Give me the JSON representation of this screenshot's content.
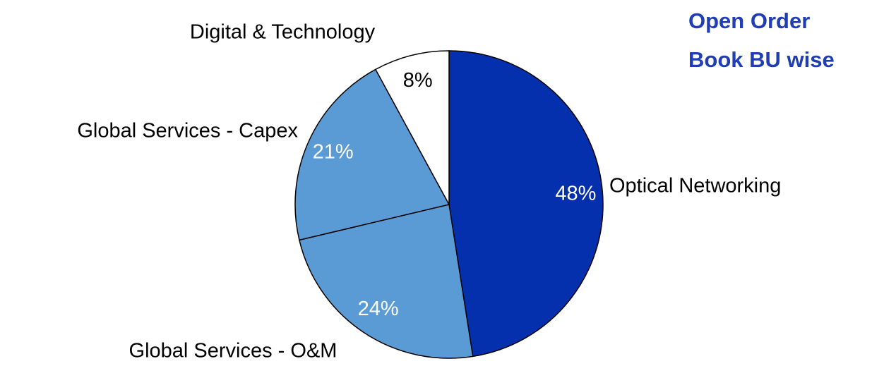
{
  "chart_data": {
    "type": "pie",
    "title": [
      "Open Order",
      "Book BU wise"
    ],
    "title_color": "#1f3db5",
    "categories": [
      "Optical Networking",
      "Global Services - O&M",
      "Global Services - Capex",
      "Digital & Technology"
    ],
    "values": [
      48,
      24,
      21,
      8
    ],
    "value_labels": [
      "48%",
      "24%",
      "21%",
      "8%"
    ],
    "colors": [
      "#0530ad",
      "#5b9bd5",
      "#5b9bd5",
      "#ffffff"
    ]
  }
}
